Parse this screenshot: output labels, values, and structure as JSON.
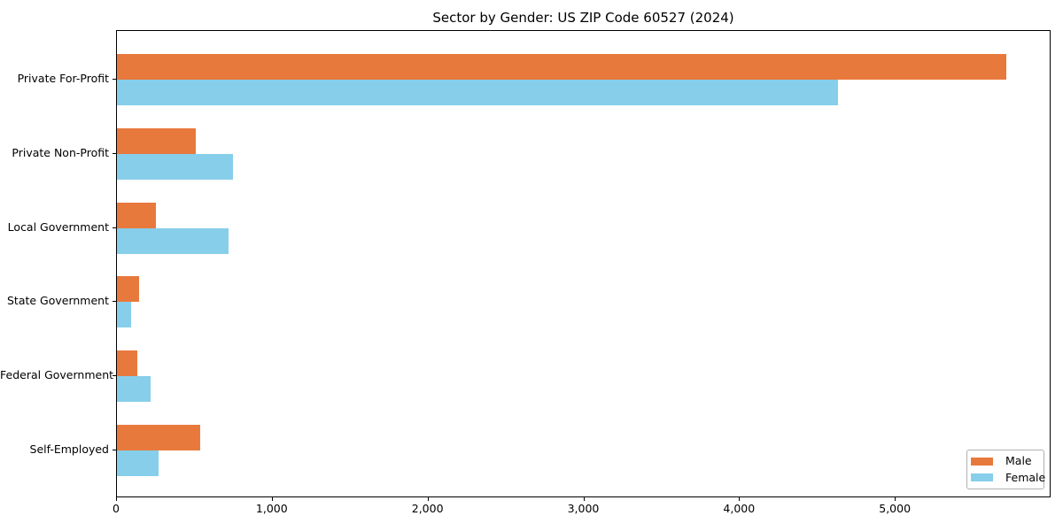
{
  "chart_data": {
    "type": "bar",
    "orientation": "horizontal",
    "title": "Sector by Gender: US ZIP Code 60527 (2024)",
    "xlabel": "",
    "ylabel": "",
    "categories": [
      "Private For-Profit",
      "Private Non-Profit",
      "Local Government",
      "State Government",
      "Federal Government",
      "Self-Employed"
    ],
    "series": [
      {
        "name": "Male",
        "color": "#E8793D",
        "values": [
          5710,
          505,
          250,
          140,
          130,
          535
        ]
      },
      {
        "name": "Female",
        "color": "#87CEEB",
        "values": [
          4630,
          745,
          715,
          90,
          215,
          265
        ]
      }
    ],
    "xlim": [
      0,
      6000
    ],
    "x_ticks": [
      0,
      1000,
      2000,
      3000,
      4000,
      5000
    ],
    "x_tick_labels": [
      "0",
      "1,000",
      "2,000",
      "3,000",
      "4,000",
      "5,000"
    ],
    "grid": false,
    "legend": {
      "position": "lower right",
      "entries": [
        "Male",
        "Female"
      ]
    }
  }
}
